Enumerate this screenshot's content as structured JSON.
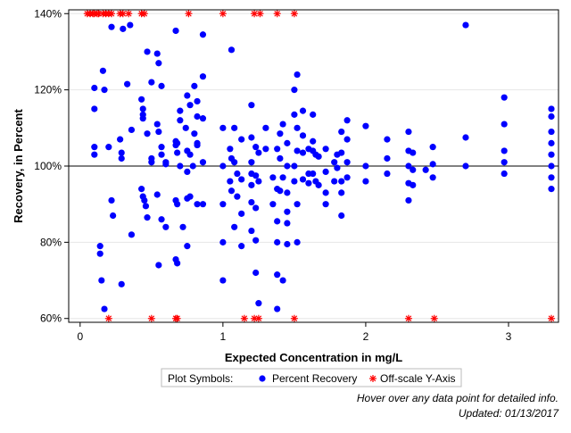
{
  "chart_data": {
    "type": "scatter",
    "xlabel": "Expected Concentration in mg/L",
    "ylabel": "Recovery, in Percent",
    "xlim": [
      -0.08,
      3.35
    ],
    "ylim": [
      59,
      141
    ],
    "x_ticks": [
      {
        "v": 0,
        "label": "0"
      },
      {
        "v": 1,
        "label": "1"
      },
      {
        "v": 2,
        "label": "2"
      },
      {
        "v": 3,
        "label": "3"
      }
    ],
    "y_ticks": [
      {
        "v": 60,
        "label": "60%"
      },
      {
        "v": 80,
        "label": "80%"
      },
      {
        "v": 100,
        "label": "100%"
      },
      {
        "v": 120,
        "label": "120%"
      },
      {
        "v": 140,
        "label": "140%"
      }
    ],
    "reference_line": 100,
    "grid": "horizontal",
    "colors": {
      "percent_recovery": "#0000ff",
      "off_scale": "#ff0000",
      "grid": "#e6e6e6",
      "axis": "#000000"
    },
    "legend": {
      "title": "Plot Symbols:",
      "placement": "bottom",
      "entries": [
        {
          "label": "Percent Recovery",
          "symbol": "dot"
        },
        {
          "label": "Off-scale Y-Axis",
          "symbol": "asterisk"
        }
      ]
    },
    "series": [
      {
        "name": "Percent Recovery",
        "symbol": "dot",
        "points": [
          [
            0.1,
            120.5
          ],
          [
            0.1,
            115
          ],
          [
            0.1,
            105
          ],
          [
            0.1,
            103
          ],
          [
            0.14,
            79
          ],
          [
            0.14,
            77
          ],
          [
            0.15,
            70
          ],
          [
            0.16,
            125
          ],
          [
            0.17,
            120
          ],
          [
            0.17,
            62.5
          ],
          [
            0.2,
            105
          ],
          [
            0.22,
            136.5
          ],
          [
            0.22,
            91
          ],
          [
            0.23,
            87
          ],
          [
            0.28,
            107
          ],
          [
            0.29,
            103.5
          ],
          [
            0.29,
            102
          ],
          [
            0.29,
            69
          ],
          [
            0.3,
            136
          ],
          [
            0.33,
            121.5
          ],
          [
            0.35,
            137
          ],
          [
            0.36,
            109.5
          ],
          [
            0.36,
            82
          ],
          [
            0.43,
            117.5
          ],
          [
            0.43,
            94
          ],
          [
            0.44,
            115
          ],
          [
            0.44,
            113.5
          ],
          [
            0.44,
            112.5
          ],
          [
            0.44,
            92
          ],
          [
            0.45,
            91
          ],
          [
            0.46,
            89.5
          ],
          [
            0.47,
            130
          ],
          [
            0.47,
            108.5
          ],
          [
            0.47,
            86.5
          ],
          [
            0.5,
            122
          ],
          [
            0.5,
            102
          ],
          [
            0.5,
            101
          ],
          [
            0.54,
            129.5
          ],
          [
            0.54,
            111
          ],
          [
            0.54,
            92.5
          ],
          [
            0.55,
            127
          ],
          [
            0.55,
            109
          ],
          [
            0.55,
            74
          ],
          [
            0.57,
            121
          ],
          [
            0.57,
            105
          ],
          [
            0.57,
            103
          ],
          [
            0.57,
            86
          ],
          [
            0.6,
            101
          ],
          [
            0.6,
            100.5
          ],
          [
            0.6,
            84
          ],
          [
            0.67,
            135.5
          ],
          [
            0.67,
            106.5
          ],
          [
            0.67,
            105.5
          ],
          [
            0.67,
            91
          ],
          [
            0.67,
            75.5
          ],
          [
            0.68,
            106
          ],
          [
            0.68,
            103.5
          ],
          [
            0.68,
            90
          ],
          [
            0.68,
            74.5
          ],
          [
            0.7,
            114.5
          ],
          [
            0.7,
            112
          ],
          [
            0.7,
            100
          ],
          [
            0.72,
            84
          ],
          [
            0.74,
            110
          ],
          [
            0.75,
            118.5
          ],
          [
            0.75,
            104
          ],
          [
            0.75,
            98.5
          ],
          [
            0.75,
            91.5
          ],
          [
            0.75,
            79
          ],
          [
            0.77,
            116
          ],
          [
            0.77,
            103
          ],
          [
            0.77,
            92
          ],
          [
            0.79,
            100
          ],
          [
            0.8,
            121
          ],
          [
            0.8,
            108.5
          ],
          [
            0.82,
            117
          ],
          [
            0.82,
            113
          ],
          [
            0.82,
            106
          ],
          [
            0.82,
            105.5
          ],
          [
            0.82,
            90
          ],
          [
            0.86,
            134.5
          ],
          [
            0.86,
            123.5
          ],
          [
            0.86,
            112.5
          ],
          [
            0.86,
            101
          ],
          [
            0.86,
            90
          ],
          [
            1.0,
            110
          ],
          [
            1.0,
            100
          ],
          [
            1.0,
            90
          ],
          [
            1.0,
            80
          ],
          [
            1.0,
            70
          ],
          [
            1.05,
            104.5
          ],
          [
            1.05,
            96
          ],
          [
            1.06,
            130.5
          ],
          [
            1.06,
            102
          ],
          [
            1.06,
            93.5
          ],
          [
            1.08,
            110
          ],
          [
            1.08,
            101
          ],
          [
            1.08,
            84
          ],
          [
            1.1,
            98
          ],
          [
            1.1,
            92
          ],
          [
            1.13,
            107
          ],
          [
            1.13,
            96.5
          ],
          [
            1.13,
            87.5
          ],
          [
            1.13,
            79
          ],
          [
            1.2,
            116
          ],
          [
            1.2,
            107.5
          ],
          [
            1.2,
            101
          ],
          [
            1.2,
            98
          ],
          [
            1.2,
            95
          ],
          [
            1.2,
            90.5
          ],
          [
            1.2,
            83
          ],
          [
            1.23,
            105
          ],
          [
            1.23,
            97.5
          ],
          [
            1.23,
            89
          ],
          [
            1.23,
            80.5
          ],
          [
            1.23,
            72
          ],
          [
            1.25,
            103.5
          ],
          [
            1.25,
            96
          ],
          [
            1.25,
            64
          ],
          [
            1.3,
            110
          ],
          [
            1.3,
            104.5
          ],
          [
            1.35,
            97
          ],
          [
            1.35,
            90
          ],
          [
            1.38,
            104.5
          ],
          [
            1.38,
            94
          ],
          [
            1.38,
            85.5
          ],
          [
            1.38,
            80
          ],
          [
            1.38,
            71.5
          ],
          [
            1.38,
            62.5
          ],
          [
            1.4,
            108.5
          ],
          [
            1.4,
            102
          ],
          [
            1.4,
            93.5
          ],
          [
            1.42,
            111
          ],
          [
            1.42,
            97
          ],
          [
            1.42,
            70
          ],
          [
            1.45,
            106
          ],
          [
            1.45,
            100
          ],
          [
            1.45,
            93
          ],
          [
            1.45,
            88
          ],
          [
            1.45,
            85
          ],
          [
            1.45,
            79.5
          ],
          [
            1.5,
            120
          ],
          [
            1.5,
            113.5
          ],
          [
            1.5,
            100
          ],
          [
            1.5,
            96
          ],
          [
            1.52,
            124
          ],
          [
            1.52,
            110
          ],
          [
            1.52,
            104
          ],
          [
            1.52,
            90
          ],
          [
            1.52,
            80
          ],
          [
            1.56,
            114.5
          ],
          [
            1.56,
            108
          ],
          [
            1.56,
            103.5
          ],
          [
            1.56,
            96.5
          ],
          [
            1.6,
            104.5
          ],
          [
            1.6,
            98
          ],
          [
            1.6,
            95.5
          ],
          [
            1.63,
            113.5
          ],
          [
            1.63,
            106.5
          ],
          [
            1.63,
            104
          ],
          [
            1.63,
            98
          ],
          [
            1.65,
            103
          ],
          [
            1.65,
            96
          ],
          [
            1.67,
            102.5
          ],
          [
            1.67,
            95
          ],
          [
            1.72,
            104.5
          ],
          [
            1.72,
            98.5
          ],
          [
            1.72,
            93
          ],
          [
            1.72,
            90
          ],
          [
            1.78,
            101
          ],
          [
            1.78,
            96
          ],
          [
            1.8,
            99.5
          ],
          [
            1.8,
            103
          ],
          [
            1.83,
            109
          ],
          [
            1.83,
            103.5
          ],
          [
            1.83,
            96
          ],
          [
            1.83,
            93
          ],
          [
            1.83,
            87
          ],
          [
            1.87,
            112
          ],
          [
            1.87,
            107
          ],
          [
            1.87,
            101
          ],
          [
            1.87,
            97
          ],
          [
            2.0,
            110.5
          ],
          [
            2.0,
            100
          ],
          [
            2.0,
            96
          ],
          [
            2.15,
            107
          ],
          [
            2.15,
            102
          ],
          [
            2.15,
            98
          ],
          [
            2.3,
            109
          ],
          [
            2.3,
            104
          ],
          [
            2.3,
            100
          ],
          [
            2.3,
            95.5
          ],
          [
            2.3,
            91
          ],
          [
            2.33,
            103.5
          ],
          [
            2.33,
            99
          ],
          [
            2.33,
            95
          ],
          [
            2.42,
            99
          ],
          [
            2.47,
            105
          ],
          [
            2.47,
            100.5
          ],
          [
            2.47,
            97
          ],
          [
            2.7,
            137
          ],
          [
            2.7,
            107.5
          ],
          [
            2.7,
            100
          ],
          [
            2.97,
            118
          ],
          [
            2.97,
            111
          ],
          [
            2.97,
            104
          ],
          [
            2.97,
            101
          ],
          [
            2.97,
            98
          ],
          [
            3.3,
            115
          ],
          [
            3.3,
            113
          ],
          [
            3.3,
            109
          ],
          [
            3.3,
            106
          ],
          [
            3.3,
            103
          ],
          [
            3.3,
            100
          ],
          [
            3.3,
            97
          ],
          [
            3.3,
            94
          ]
        ]
      },
      {
        "name": "Off-scale Y-Axis",
        "symbol": "asterisk",
        "points": [
          [
            0.05,
            140
          ],
          [
            0.07,
            140
          ],
          [
            0.09,
            140
          ],
          [
            0.1,
            140
          ],
          [
            0.12,
            140
          ],
          [
            0.13,
            140
          ],
          [
            0.16,
            140
          ],
          [
            0.18,
            140
          ],
          [
            0.2,
            140
          ],
          [
            0.22,
            140
          ],
          [
            0.28,
            140
          ],
          [
            0.3,
            140
          ],
          [
            0.34,
            140
          ],
          [
            0.43,
            140
          ],
          [
            0.45,
            140
          ],
          [
            0.76,
            140
          ],
          [
            1.0,
            140
          ],
          [
            1.22,
            140
          ],
          [
            1.26,
            140
          ],
          [
            1.38,
            140
          ],
          [
            1.5,
            140
          ],
          [
            0.2,
            60
          ],
          [
            0.5,
            60
          ],
          [
            0.67,
            60
          ],
          [
            0.68,
            60
          ],
          [
            1.15,
            60
          ],
          [
            1.22,
            60
          ],
          [
            1.25,
            60
          ],
          [
            1.5,
            60
          ],
          [
            2.3,
            60
          ],
          [
            2.48,
            60
          ],
          [
            3.3,
            60
          ]
        ]
      }
    ]
  },
  "notes": {
    "hover": "Hover over any data point for detailed info.",
    "updated": "Updated: 01/13/2017"
  }
}
